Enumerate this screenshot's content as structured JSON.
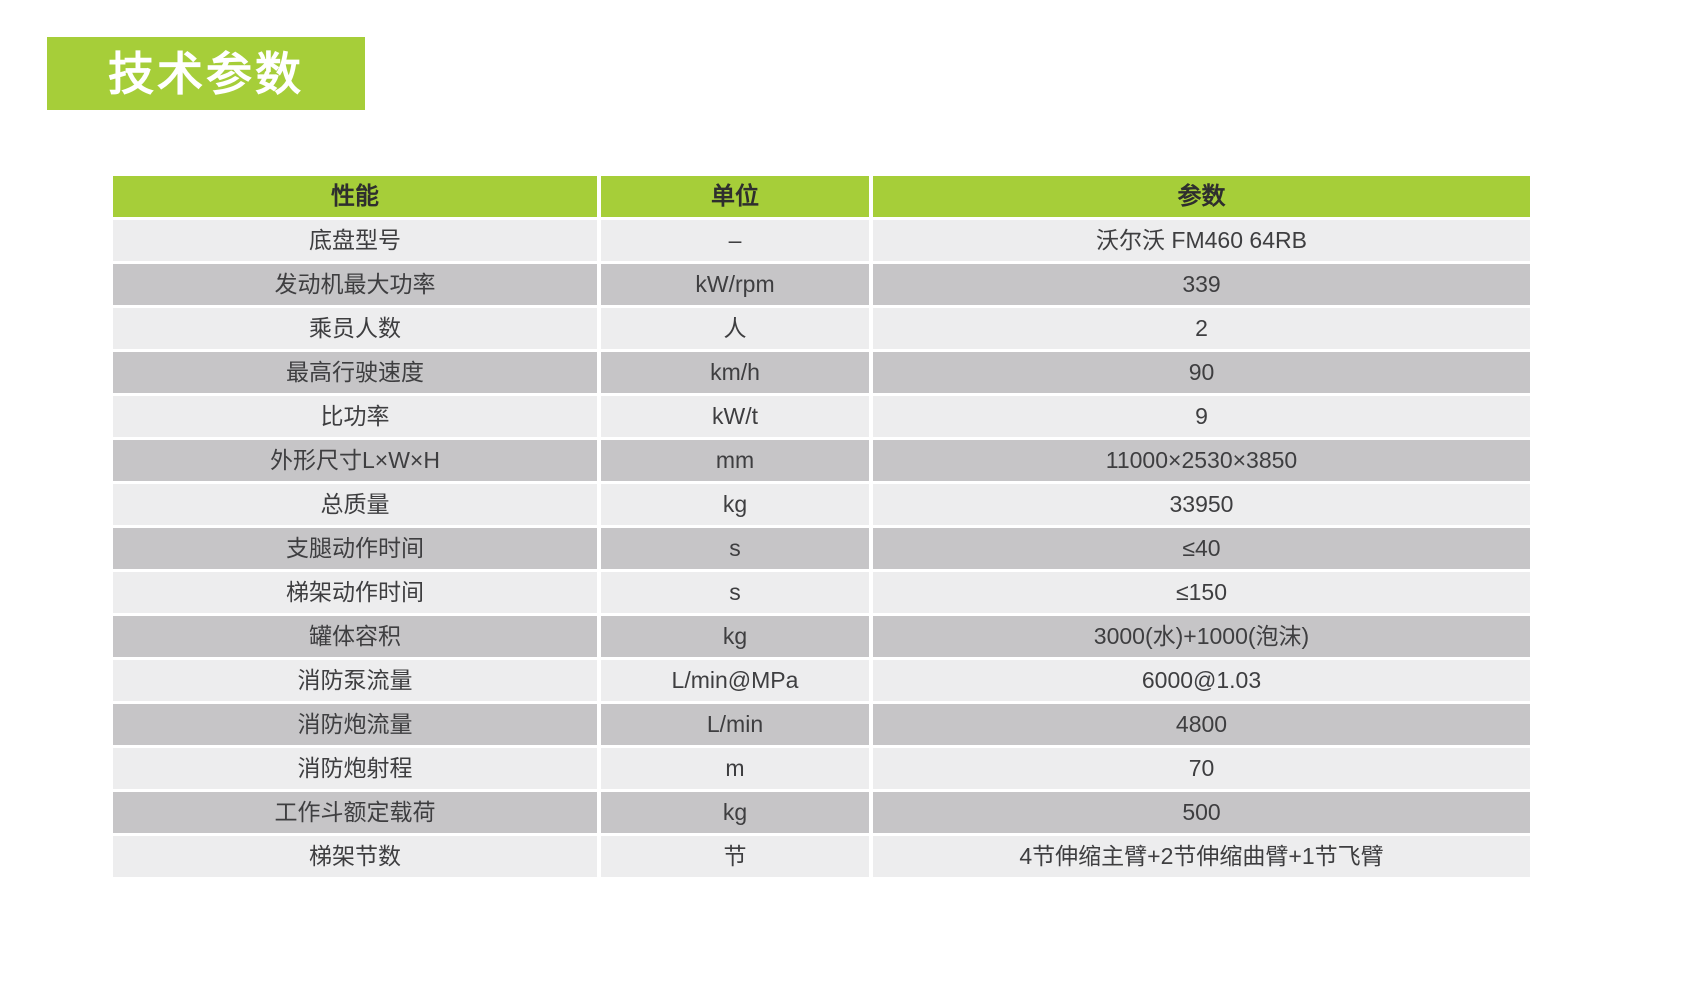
{
  "page": {
    "title": "技术参数"
  },
  "colors": {
    "accent_green": "#a6ce39",
    "title_text": "#ffffff",
    "header_text": "#2e2e2e",
    "cell_text": "#3e3e40",
    "row_light": "#ededee",
    "row_dark": "#c6c5c7",
    "background": "#ffffff"
  },
  "table": {
    "headers": [
      "性能",
      "单位",
      "参数"
    ],
    "rows": [
      {
        "property": "底盘型号",
        "unit": "–",
        "value": "沃尔沃 FM460 64RB"
      },
      {
        "property": "发动机最大功率",
        "unit": "kW/rpm",
        "value": "339"
      },
      {
        "property": "乘员人数",
        "unit": "人",
        "value": "2"
      },
      {
        "property": "最高行驶速度",
        "unit": "km/h",
        "value": "90"
      },
      {
        "property": "比功率",
        "unit": "kW/t",
        "value": "9"
      },
      {
        "property": "外形尺寸L×W×H",
        "unit": "mm",
        "value": "11000×2530×3850"
      },
      {
        "property": "总质量",
        "unit": "kg",
        "value": "33950"
      },
      {
        "property": "支腿动作时间",
        "unit": "s",
        "value": "≤40"
      },
      {
        "property": "梯架动作时间",
        "unit": "s",
        "value": "≤150"
      },
      {
        "property": "罐体容积",
        "unit": "kg",
        "value": "3000(水)+1000(泡沫)"
      },
      {
        "property": "消防泵流量",
        "unit": "L/min@MPa",
        "value": "6000@1.03"
      },
      {
        "property": "消防炮流量",
        "unit": "L/min",
        "value": "4800"
      },
      {
        "property": "消防炮射程",
        "unit": "m",
        "value": "70"
      },
      {
        "property": "工作斗额定载荷",
        "unit": "kg",
        "value": "500"
      },
      {
        "property": "梯架节数",
        "unit": "节",
        "value": "4节伸缩主臂+2节伸缩曲臂+1节飞臂"
      }
    ]
  }
}
